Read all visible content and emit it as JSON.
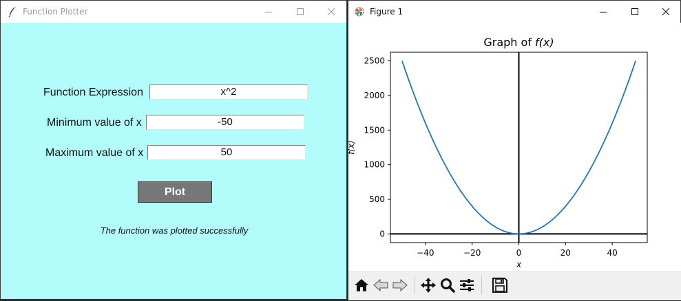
{
  "left_window": {
    "title": "Function Plotter",
    "labels": {
      "expression": "Function Expression",
      "min": "Minimum value of x",
      "max": "Maximum value of x"
    },
    "values": {
      "expression": "x^2",
      "min": "-50",
      "max": "50"
    },
    "plot_button": "Plot",
    "status": "The function was plotted successfully",
    "background_color": "#b2fcfc"
  },
  "right_window": {
    "title": "Figure 1",
    "toolbar": [
      "home-icon",
      "back-icon",
      "forward-icon",
      "pan-icon",
      "zoom-icon",
      "configure-subplots-icon",
      "save-icon"
    ]
  },
  "chart_data": {
    "type": "line",
    "title_prefix": "Graph of ",
    "title_func": "f(x)",
    "xlabel": "x",
    "ylabel": "f(x)",
    "xlim": [
      -55,
      55
    ],
    "ylim": [
      -125,
      2625
    ],
    "xticks": [
      -40,
      -20,
      0,
      20,
      40
    ],
    "xtick_labels": [
      "−40",
      "−20",
      "0",
      "20",
      "40"
    ],
    "yticks": [
      0,
      500,
      1000,
      1500,
      2000,
      2500
    ],
    "ytick_labels": [
      "0",
      "500",
      "1000",
      "1500",
      "2000",
      "2500"
    ],
    "series": [
      {
        "function": "x^2",
        "x_range": [
          -50,
          50
        ],
        "color": "#1f77b4"
      }
    ],
    "axis_lines": {
      "x0": true,
      "y0": true,
      "color": "#000000"
    },
    "grid": false
  }
}
